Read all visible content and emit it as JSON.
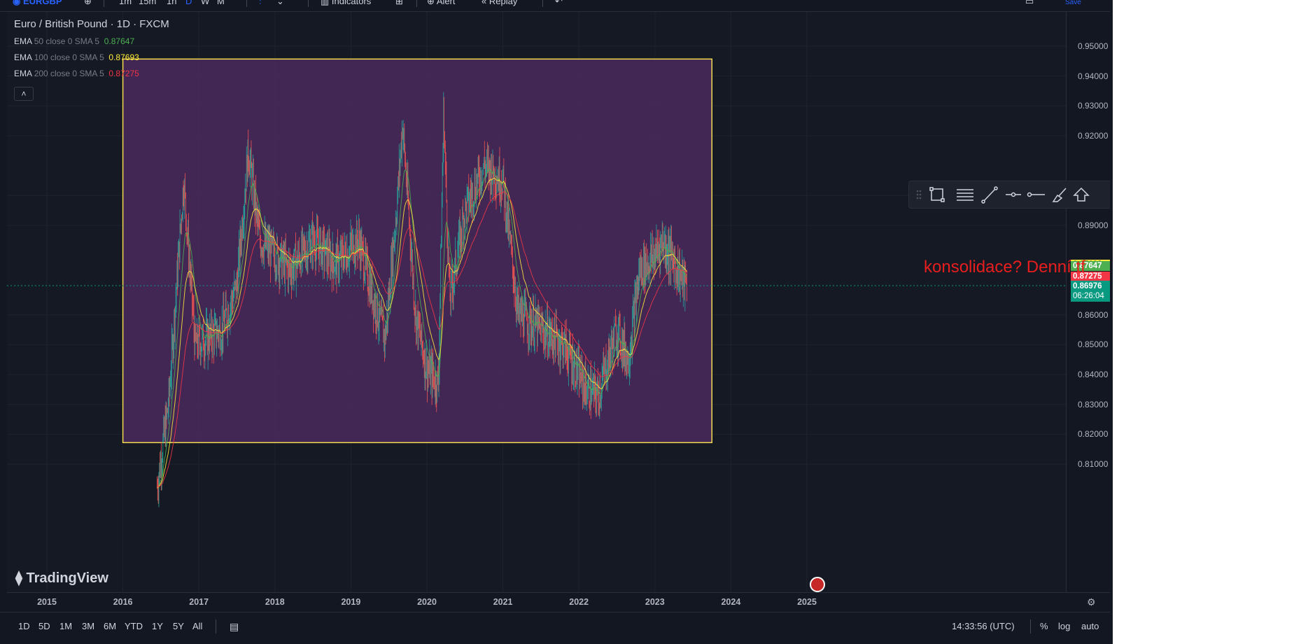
{
  "topbar": {
    "symbol": "EURGBP",
    "intervals": [
      "1m",
      "15m",
      "1h",
      "D",
      "W",
      "M"
    ],
    "indicators_label": "Indicators",
    "alert_label": "Alert",
    "replay_label": "Replay",
    "save_label": "Save"
  },
  "legend": {
    "title": "Euro / British Pound · 1D · FXCM",
    "indicators": [
      {
        "name": "EMA",
        "params": "50 close 0 SMA 5",
        "value": "0.87647",
        "color": "#4caf50"
      },
      {
        "name": "EMA",
        "params": "100 close 0 SMA 5",
        "value": "0.87693",
        "color": "#ffeb3b"
      },
      {
        "name": "EMA",
        "params": "200 close 0 SMA 5",
        "value": "0.87275",
        "color": "#f23645"
      }
    ],
    "collapse_icon": "chevron-up-icon"
  },
  "price_axis": {
    "labels": [
      "0.95000",
      "0.94000",
      "0.93000",
      "0.92000",
      "0.90000",
      "0.89000",
      "0.86000",
      "0.85000",
      "0.84000",
      "0.83000",
      "0.82000",
      "0.81000"
    ],
    "label_values": [
      0.95,
      0.94,
      0.93,
      0.92,
      0.9,
      0.89,
      0.86,
      0.85,
      0.84,
      0.83,
      0.82,
      0.81
    ],
    "badges": [
      {
        "text": "0.87693",
        "color": "#ffeb3b",
        "text_color": "#131722"
      },
      {
        "text": "0.87647",
        "color": "#4caf50",
        "text_color": "#ffffff"
      },
      {
        "text": "0.87275",
        "color": "#f23645",
        "text_color": "#ffffff"
      }
    ],
    "last_price": "0.86976",
    "countdown": "06:26:04",
    "last_price_color": "#089981"
  },
  "time_axis": {
    "labels": [
      "2015",
      "2016",
      "2017",
      "2018",
      "2019",
      "2020",
      "2021",
      "2022",
      "2023",
      "2024",
      "2025"
    ],
    "settings_icon": "gear-icon"
  },
  "bottombar": {
    "ranges": [
      "1D",
      "5D",
      "1M",
      "3M",
      "6M",
      "YTD",
      "1Y",
      "5Y",
      "All"
    ],
    "date_range_icon": "calendar-icon",
    "clock": "14:33:56 (UTC)",
    "percent": "%",
    "log": "log",
    "auto": "auto"
  },
  "drawing_toolbar": {
    "icons": [
      "drag-handle-icon",
      "rectangle-icon",
      "fib-icon",
      "trend-line-icon",
      "horizontal-ray-icon",
      "horizontal-line-icon",
      "brush-icon",
      "arrow-up-icon"
    ]
  },
  "annotation": {
    "text": "konsolidace? Denní tf"
  },
  "watermark": {
    "text": "TradingView"
  },
  "rectangle": {
    "fill": "#4a2a5e",
    "stroke": "#f2d94e",
    "top_price": 0.9457,
    "bottom_price": 0.8172,
    "start": "2016-01",
    "end": "2023-10"
  },
  "colors": {
    "up": "#26a69a",
    "down": "#ef5350",
    "background": "#131722"
  }
}
